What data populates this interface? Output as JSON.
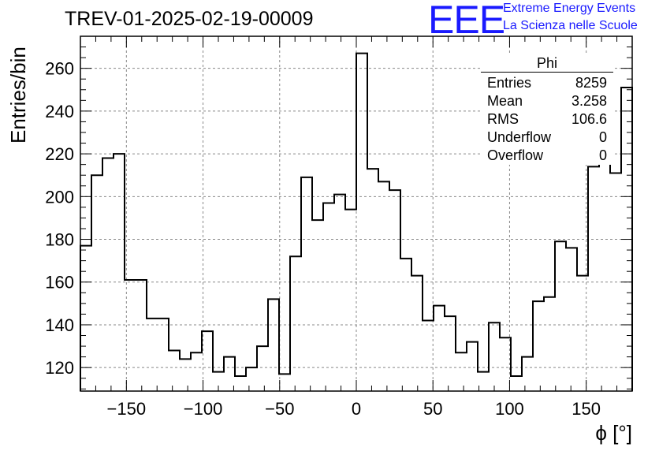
{
  "header": {
    "title": "TREV-01-2025-02-19-00009",
    "logo_text": "EEE",
    "brand_line1": "Extreme Energy Events",
    "brand_line2": "La Scienza nelle Scuole"
  },
  "stats_box": {
    "title": "Phi",
    "rows": [
      {
        "label": "Entries",
        "value": "8259"
      },
      {
        "label": "Mean",
        "value": "3.258"
      },
      {
        "label": "RMS",
        "value": "106.6"
      },
      {
        "label": "Underflow",
        "value": "0"
      },
      {
        "label": "Overflow",
        "value": "0"
      }
    ]
  },
  "chart_data": {
    "type": "histogram",
    "title": "TREV-01-2025-02-19-00009",
    "xlabel": "ϕ [°]",
    "ylabel": "Entries/bin",
    "xlim": [
      -180,
      180
    ],
    "ylim": [
      109,
      275
    ],
    "bin_width": 7.2,
    "x_ticks": [
      -150,
      -100,
      -50,
      0,
      50,
      100,
      150
    ],
    "x_tick_labels": [
      "−150",
      "−100",
      "−50",
      "0",
      "50",
      "100",
      "150"
    ],
    "y_ticks": [
      120,
      140,
      160,
      180,
      200,
      220,
      240,
      260
    ],
    "y_tick_labels": [
      "120",
      "140",
      "160",
      "180",
      "200",
      "220",
      "240",
      "260"
    ],
    "grid": true,
    "bin_edges_start": -180,
    "values": [
      177,
      210,
      218,
      220,
      161,
      161,
      143,
      143,
      128,
      124,
      127,
      137,
      118,
      125,
      116,
      120,
      130,
      152,
      117,
      172,
      209,
      189,
      197,
      201,
      194,
      267,
      213,
      207,
      203,
      171,
      163,
      142,
      149,
      144,
      127,
      132,
      118,
      141,
      134,
      116,
      125,
      151,
      153,
      179,
      176,
      163,
      214,
      220,
      211,
      251
    ],
    "color": "#000000"
  }
}
